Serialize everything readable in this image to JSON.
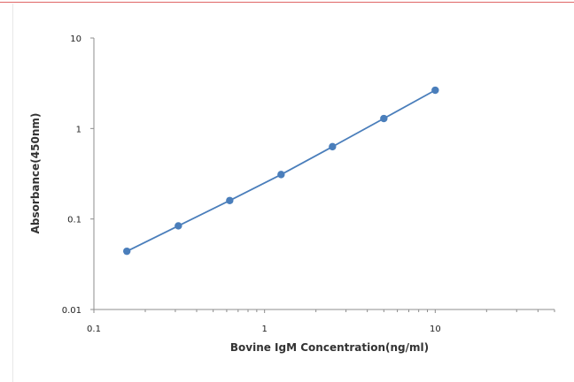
{
  "chart_data": {
    "type": "scatter",
    "title": "",
    "xlabel": "Bovine IgM Concentration(ng/ml)",
    "ylabel": "Absorbance(450nm)",
    "xscale": "log",
    "yscale": "log",
    "xlim": [
      0.1,
      50
    ],
    "ylim": [
      0.01,
      10
    ],
    "x_ticks": [
      0.1,
      1,
      10
    ],
    "x_tick_labels": [
      "0.1",
      "1",
      "10"
    ],
    "y_ticks": [
      0.01,
      0.1,
      1,
      10
    ],
    "y_tick_labels": [
      "0.01",
      "0.1",
      "1",
      "10"
    ],
    "grid": false,
    "legend": "none",
    "trendline": "line through points",
    "series": [
      {
        "x": [
          0.156,
          0.3125,
          0.625,
          1.25,
          2.5,
          5,
          10
        ],
        "y": [
          0.044,
          0.084,
          0.16,
          0.31,
          0.63,
          1.29,
          2.65
        ],
        "color": "#4a7ebb"
      }
    ]
  }
}
